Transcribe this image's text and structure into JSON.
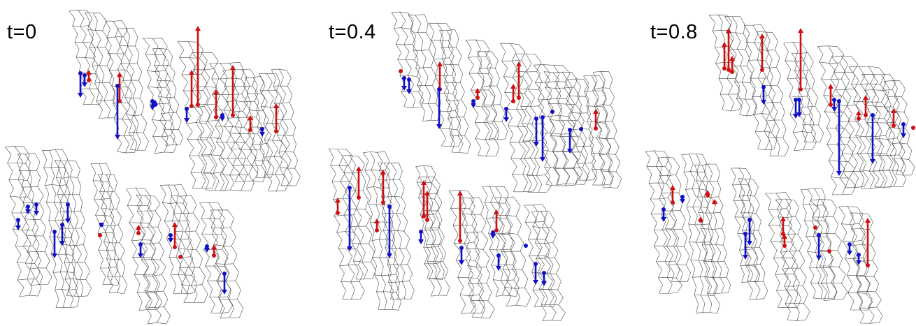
{
  "panels": [
    {
      "label": "t=0"
    },
    {
      "label": "t=0.4"
    },
    {
      "label": "t=0.8"
    }
  ],
  "colors": {
    "lattice": "#4a4a4a",
    "up_arrow": "#d01010",
    "down_arrow": "#1010c8"
  }
}
